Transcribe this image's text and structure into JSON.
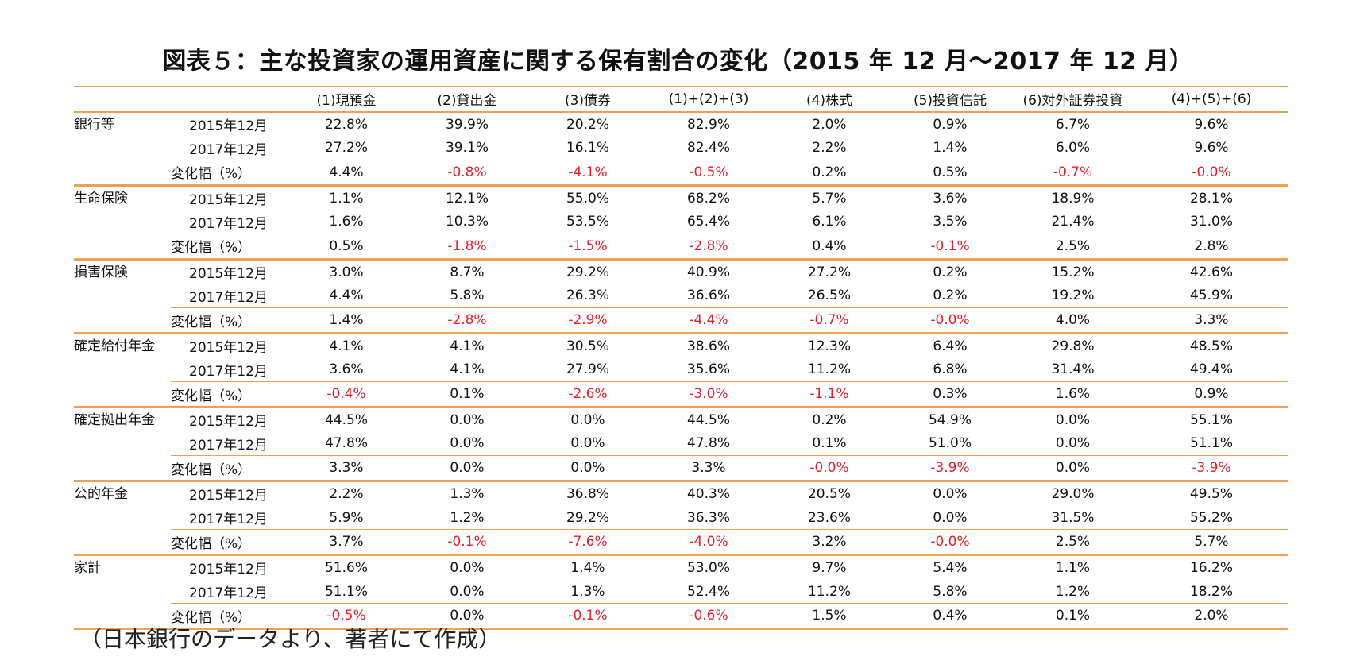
{
  "title": "図表５：主な投資家の運用資産に関する保有割合の変化（2015 年 12 月～2017 年 12 月）",
  "columns": [
    "(1)現預金",
    "(2)貸出金",
    "(3)債券",
    "(1)+(2)+(3)",
    "(4)株式",
    "(5)投資信託",
    "(6)対外証券投資",
    "(4)+(5)+(6)"
  ],
  "groups": [
    {
      "name": "銀行等",
      "rows": [
        {
          "label": "2015年12月",
          "values": [
            "22.8%",
            "39.9%",
            "20.2%",
            "82.9%",
            "2.0%",
            "0.9%",
            "6.7%",
            "9.6%"
          ]
        },
        {
          "label": "2017年12月",
          "values": [
            "27.2%",
            "39.1%",
            "16.1%",
            "82.4%",
            "2.2%",
            "1.4%",
            "6.0%",
            "9.6%"
          ]
        },
        {
          "label": "変化幅（%）",
          "values": [
            "4.4%",
            "-0.8%",
            "-4.1%",
            "-0.5%",
            "0.2%",
            "0.5%",
            "-0.7%",
            "-0.0%"
          ]
        }
      ]
    },
    {
      "name": "生命保険",
      "rows": [
        {
          "label": "2015年12月",
          "values": [
            "1.1%",
            "12.1%",
            "55.0%",
            "68.2%",
            "5.7%",
            "3.6%",
            "18.9%",
            "28.1%"
          ]
        },
        {
          "label": "2017年12月",
          "values": [
            "1.6%",
            "10.3%",
            "53.5%",
            "65.4%",
            "6.1%",
            "3.5%",
            "21.4%",
            "31.0%"
          ]
        },
        {
          "label": "変化幅（%）",
          "values": [
            "0.5%",
            "-1.8%",
            "-1.5%",
            "-2.8%",
            "0.4%",
            "-0.1%",
            "2.5%",
            "2.8%"
          ]
        }
      ]
    },
    {
      "name": "損害保険",
      "rows": [
        {
          "label": "2015年12月",
          "values": [
            "3.0%",
            "8.7%",
            "29.2%",
            "40.9%",
            "27.2%",
            "0.2%",
            "15.2%",
            "42.6%"
          ]
        },
        {
          "label": "2017年12月",
          "values": [
            "4.4%",
            "5.8%",
            "26.3%",
            "36.6%",
            "26.5%",
            "0.2%",
            "19.2%",
            "45.9%"
          ]
        },
        {
          "label": "変化幅（%）",
          "values": [
            "1.4%",
            "-2.8%",
            "-2.9%",
            "-4.4%",
            "-0.7%",
            "-0.0%",
            "4.0%",
            "3.3%"
          ]
        }
      ]
    },
    {
      "name": "確定給付年金",
      "rows": [
        {
          "label": "2015年12月",
          "values": [
            "4.1%",
            "4.1%",
            "30.5%",
            "38.6%",
            "12.3%",
            "6.4%",
            "29.8%",
            "48.5%"
          ]
        },
        {
          "label": "2017年12月",
          "values": [
            "3.6%",
            "4.1%",
            "27.9%",
            "35.6%",
            "11.2%",
            "6.8%",
            "31.4%",
            "49.4%"
          ]
        },
        {
          "label": "変化幅（%）",
          "values": [
            "-0.4%",
            "0.1%",
            "-2.6%",
            "-3.0%",
            "-1.1%",
            "0.3%",
            "1.6%",
            "0.9%"
          ]
        }
      ]
    },
    {
      "name": "確定拠出年金",
      "rows": [
        {
          "label": "2015年12月",
          "values": [
            "44.5%",
            "0.0%",
            "0.0%",
            "44.5%",
            "0.2%",
            "54.9%",
            "0.0%",
            "55.1%"
          ]
        },
        {
          "label": "2017年12月",
          "values": [
            "47.8%",
            "0.0%",
            "0.0%",
            "47.8%",
            "0.1%",
            "51.0%",
            "0.0%",
            "51.1%"
          ]
        },
        {
          "label": "変化幅（%）",
          "values": [
            "3.3%",
            "0.0%",
            "0.0%",
            "3.3%",
            "-0.0%",
            "-3.9%",
            "0.0%",
            "-3.9%"
          ]
        }
      ]
    },
    {
      "name": "公的年金",
      "rows": [
        {
          "label": "2015年12月",
          "values": [
            "2.2%",
            "1.3%",
            "36.8%",
            "40.3%",
            "20.5%",
            "0.0%",
            "29.0%",
            "49.5%"
          ]
        },
        {
          "label": "2017年12月",
          "values": [
            "5.9%",
            "1.2%",
            "29.2%",
            "36.3%",
            "23.6%",
            "0.0%",
            "31.5%",
            "55.2%"
          ]
        },
        {
          "label": "変化幅（%）",
          "values": [
            "3.7%",
            "-0.1%",
            "-7.6%",
            "-4.0%",
            "3.2%",
            "-0.0%",
            "2.5%",
            "5.7%"
          ]
        }
      ]
    },
    {
      "name": "家計",
      "rows": [
        {
          "label": "2015年12月",
          "values": [
            "51.6%",
            "0.0%",
            "1.4%",
            "53.0%",
            "9.7%",
            "5.4%",
            "1.1%",
            "16.2%"
          ]
        },
        {
          "label": "2017年12月",
          "values": [
            "51.1%",
            "0.0%",
            "1.3%",
            "52.4%",
            "11.2%",
            "5.8%",
            "1.2%",
            "18.2%"
          ]
        },
        {
          "label": "変化幅（%）",
          "values": [
            "-0.5%",
            "0.0%",
            "-0.1%",
            "-0.6%",
            "1.5%",
            "0.4%",
            "0.1%",
            "2.0%"
          ]
        }
      ]
    }
  ],
  "negative_color": "#e0202a",
  "rule_color": "#f0a050",
  "note": "（日本銀行のデータより、著者にて作成）"
}
